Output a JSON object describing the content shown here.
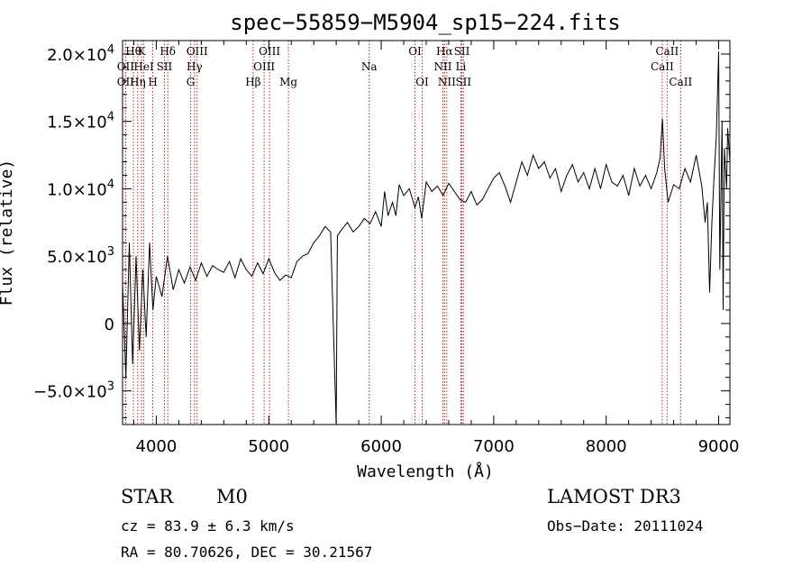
{
  "chart_data": {
    "type": "line",
    "title": "spec−55859−M5904_sp15−224.fits",
    "xlabel": "Wavelength (Å)",
    "ylabel": "Flux (relative)",
    "xlim": [
      3700,
      9100
    ],
    "ylim": [
      -7500,
      21000
    ],
    "xticks": [
      4000,
      5000,
      6000,
      7000,
      8000,
      9000
    ],
    "yticks": [
      {
        "value": 20000,
        "mant": "2.0",
        "exp": "4"
      },
      {
        "value": 15000,
        "mant": "1.5",
        "exp": "4"
      },
      {
        "value": 10000,
        "mant": "1.0",
        "exp": "4"
      },
      {
        "value": 5000,
        "mant": "5.0",
        "exp": "3"
      },
      {
        "value": 0,
        "mant": "0",
        "exp": ""
      },
      {
        "value": -5000,
        "mant": "−5.0",
        "exp": "3"
      }
    ],
    "series": [
      {
        "name": "spectrum",
        "points": [
          [
            3700,
            3000
          ],
          [
            3730,
            -4000
          ],
          [
            3760,
            6000
          ],
          [
            3790,
            -3000
          ],
          [
            3820,
            5000
          ],
          [
            3850,
            -2000
          ],
          [
            3880,
            4000
          ],
          [
            3910,
            -1000
          ],
          [
            3940,
            6000
          ],
          [
            3970,
            1000
          ],
          [
            4000,
            3500
          ],
          [
            4050,
            2000
          ],
          [
            4100,
            5000
          ],
          [
            4150,
            2500
          ],
          [
            4200,
            4000
          ],
          [
            4250,
            3000
          ],
          [
            4300,
            4200
          ],
          [
            4350,
            3200
          ],
          [
            4400,
            4500
          ],
          [
            4450,
            3500
          ],
          [
            4500,
            4300
          ],
          [
            4550,
            4000
          ],
          [
            4600,
            3800
          ],
          [
            4650,
            4600
          ],
          [
            4700,
            3400
          ],
          [
            4750,
            4800
          ],
          [
            4800,
            4000
          ],
          [
            4850,
            3500
          ],
          [
            4900,
            4500
          ],
          [
            4950,
            3700
          ],
          [
            5000,
            4800
          ],
          [
            5050,
            3800
          ],
          [
            5100,
            3200
          ],
          [
            5150,
            3600
          ],
          [
            5200,
            3400
          ],
          [
            5250,
            4600
          ],
          [
            5300,
            5000
          ],
          [
            5350,
            5200
          ],
          [
            5400,
            6000
          ],
          [
            5450,
            6500
          ],
          [
            5500,
            7200
          ],
          [
            5550,
            6800
          ],
          [
            5600,
            -7500
          ],
          [
            5610,
            6500
          ],
          [
            5650,
            7000
          ],
          [
            5700,
            7500
          ],
          [
            5750,
            6800
          ],
          [
            5800,
            7200
          ],
          [
            5850,
            7800
          ],
          [
            5900,
            7400
          ],
          [
            5950,
            8300
          ],
          [
            6000,
            7200
          ],
          [
            6030,
            9800
          ],
          [
            6060,
            8000
          ],
          [
            6100,
            9000
          ],
          [
            6130,
            8000
          ],
          [
            6160,
            10300
          ],
          [
            6200,
            9500
          ],
          [
            6250,
            10000
          ],
          [
            6300,
            8600
          ],
          [
            6330,
            9400
          ],
          [
            6360,
            7800
          ],
          [
            6400,
            10500
          ],
          [
            6450,
            9800
          ],
          [
            6500,
            10200
          ],
          [
            6550,
            9500
          ],
          [
            6600,
            10400
          ],
          [
            6650,
            9800
          ],
          [
            6700,
            9200
          ],
          [
            6750,
            9000
          ],
          [
            6800,
            9800
          ],
          [
            6850,
            8800
          ],
          [
            6900,
            9200
          ],
          [
            6950,
            10000
          ],
          [
            7000,
            10800
          ],
          [
            7050,
            11200
          ],
          [
            7100,
            10200
          ],
          [
            7150,
            9000
          ],
          [
            7200,
            10500
          ],
          [
            7250,
            12000
          ],
          [
            7300,
            11000
          ],
          [
            7350,
            12500
          ],
          [
            7400,
            11500
          ],
          [
            7450,
            12000
          ],
          [
            7500,
            10800
          ],
          [
            7550,
            11500
          ],
          [
            7600,
            9800
          ],
          [
            7650,
            11000
          ],
          [
            7700,
            11800
          ],
          [
            7750,
            10500
          ],
          [
            7800,
            11200
          ],
          [
            7850,
            10000
          ],
          [
            7900,
            11500
          ],
          [
            7950,
            10000
          ],
          [
            8000,
            11800
          ],
          [
            8050,
            10500
          ],
          [
            8100,
            10200
          ],
          [
            8150,
            11000
          ],
          [
            8200,
            9500
          ],
          [
            8250,
            11500
          ],
          [
            8300,
            10200
          ],
          [
            8350,
            11000
          ],
          [
            8400,
            10000
          ],
          [
            8450,
            11200
          ],
          [
            8480,
            12300
          ],
          [
            8500,
            15200
          ],
          [
            8520,
            11500
          ],
          [
            8550,
            9000
          ],
          [
            8600,
            10300
          ],
          [
            8650,
            10000
          ],
          [
            8700,
            11500
          ],
          [
            8750,
            10500
          ],
          [
            8800,
            12500
          ],
          [
            8850,
            10200
          ],
          [
            8880,
            7500
          ],
          [
            8900,
            9000
          ],
          [
            8920,
            2300
          ],
          [
            8940,
            7500
          ],
          [
            8960,
            11000
          ],
          [
            8980,
            14000
          ],
          [
            9000,
            20200
          ],
          [
            9010,
            4000
          ],
          [
            9030,
            15000
          ],
          [
            9040,
            1000
          ],
          [
            9050,
            13000
          ],
          [
            9070,
            10000
          ],
          [
            9080,
            14500
          ],
          [
            9100,
            12000
          ]
        ]
      }
    ],
    "lines_top": [
      {
        "wave": 3797,
        "label": "Hθ"
      },
      {
        "wave": 3869,
        "label": "K"
      },
      {
        "wave": 4102,
        "label": "Hδ"
      },
      {
        "wave": 4363,
        "label": "OIII"
      },
      {
        "wave": 5007,
        "label": "OIII"
      },
      {
        "wave": 6300,
        "label": "OI"
      },
      {
        "wave": 6563,
        "label": "Hα"
      },
      {
        "wave": 6717,
        "label": "SII"
      },
      {
        "wave": 8542,
        "label": "CaII"
      }
    ],
    "lines_mid": [
      {
        "wave": 3727,
        "label": "OII"
      },
      {
        "wave": 3889,
        "label": "HeI"
      },
      {
        "wave": 4072,
        "label": "SII"
      },
      {
        "wave": 4340,
        "label": "Hγ"
      },
      {
        "wave": 4959,
        "label": "OIII"
      },
      {
        "wave": 5893,
        "label": "Na"
      },
      {
        "wave": 6548,
        "label": "NII"
      },
      {
        "wave": 6708,
        "label": "Li"
      },
      {
        "wave": 8498,
        "label": "CaII"
      }
    ],
    "lines_low": [
      {
        "wave": 3727,
        "label": "OII"
      },
      {
        "wave": 3835,
        "label": "Hη"
      },
      {
        "wave": 3969,
        "label": "H"
      },
      {
        "wave": 4305,
        "label": "G"
      },
      {
        "wave": 4861,
        "label": "Hβ"
      },
      {
        "wave": 5175,
        "label": "Mg"
      },
      {
        "wave": 6364,
        "label": "OI"
      },
      {
        "wave": 6583,
        "label": "NII"
      },
      {
        "wave": 6731,
        "label": "SII"
      },
      {
        "wave": 8662,
        "label": "CaII"
      }
    ],
    "colors": {
      "spectrum": "#000000",
      "line_markers": "#a52a2a",
      "axes": "#000000"
    }
  },
  "info": {
    "object_class": "STAR",
    "subclass": "M0",
    "survey": "LAMOST DR3",
    "cz": "cz = 83.9 ± 6.3 km/s",
    "obs_date": "Obs−Date: 20111024",
    "coords": "RA =  80.70626, DEC =  30.21567"
  }
}
